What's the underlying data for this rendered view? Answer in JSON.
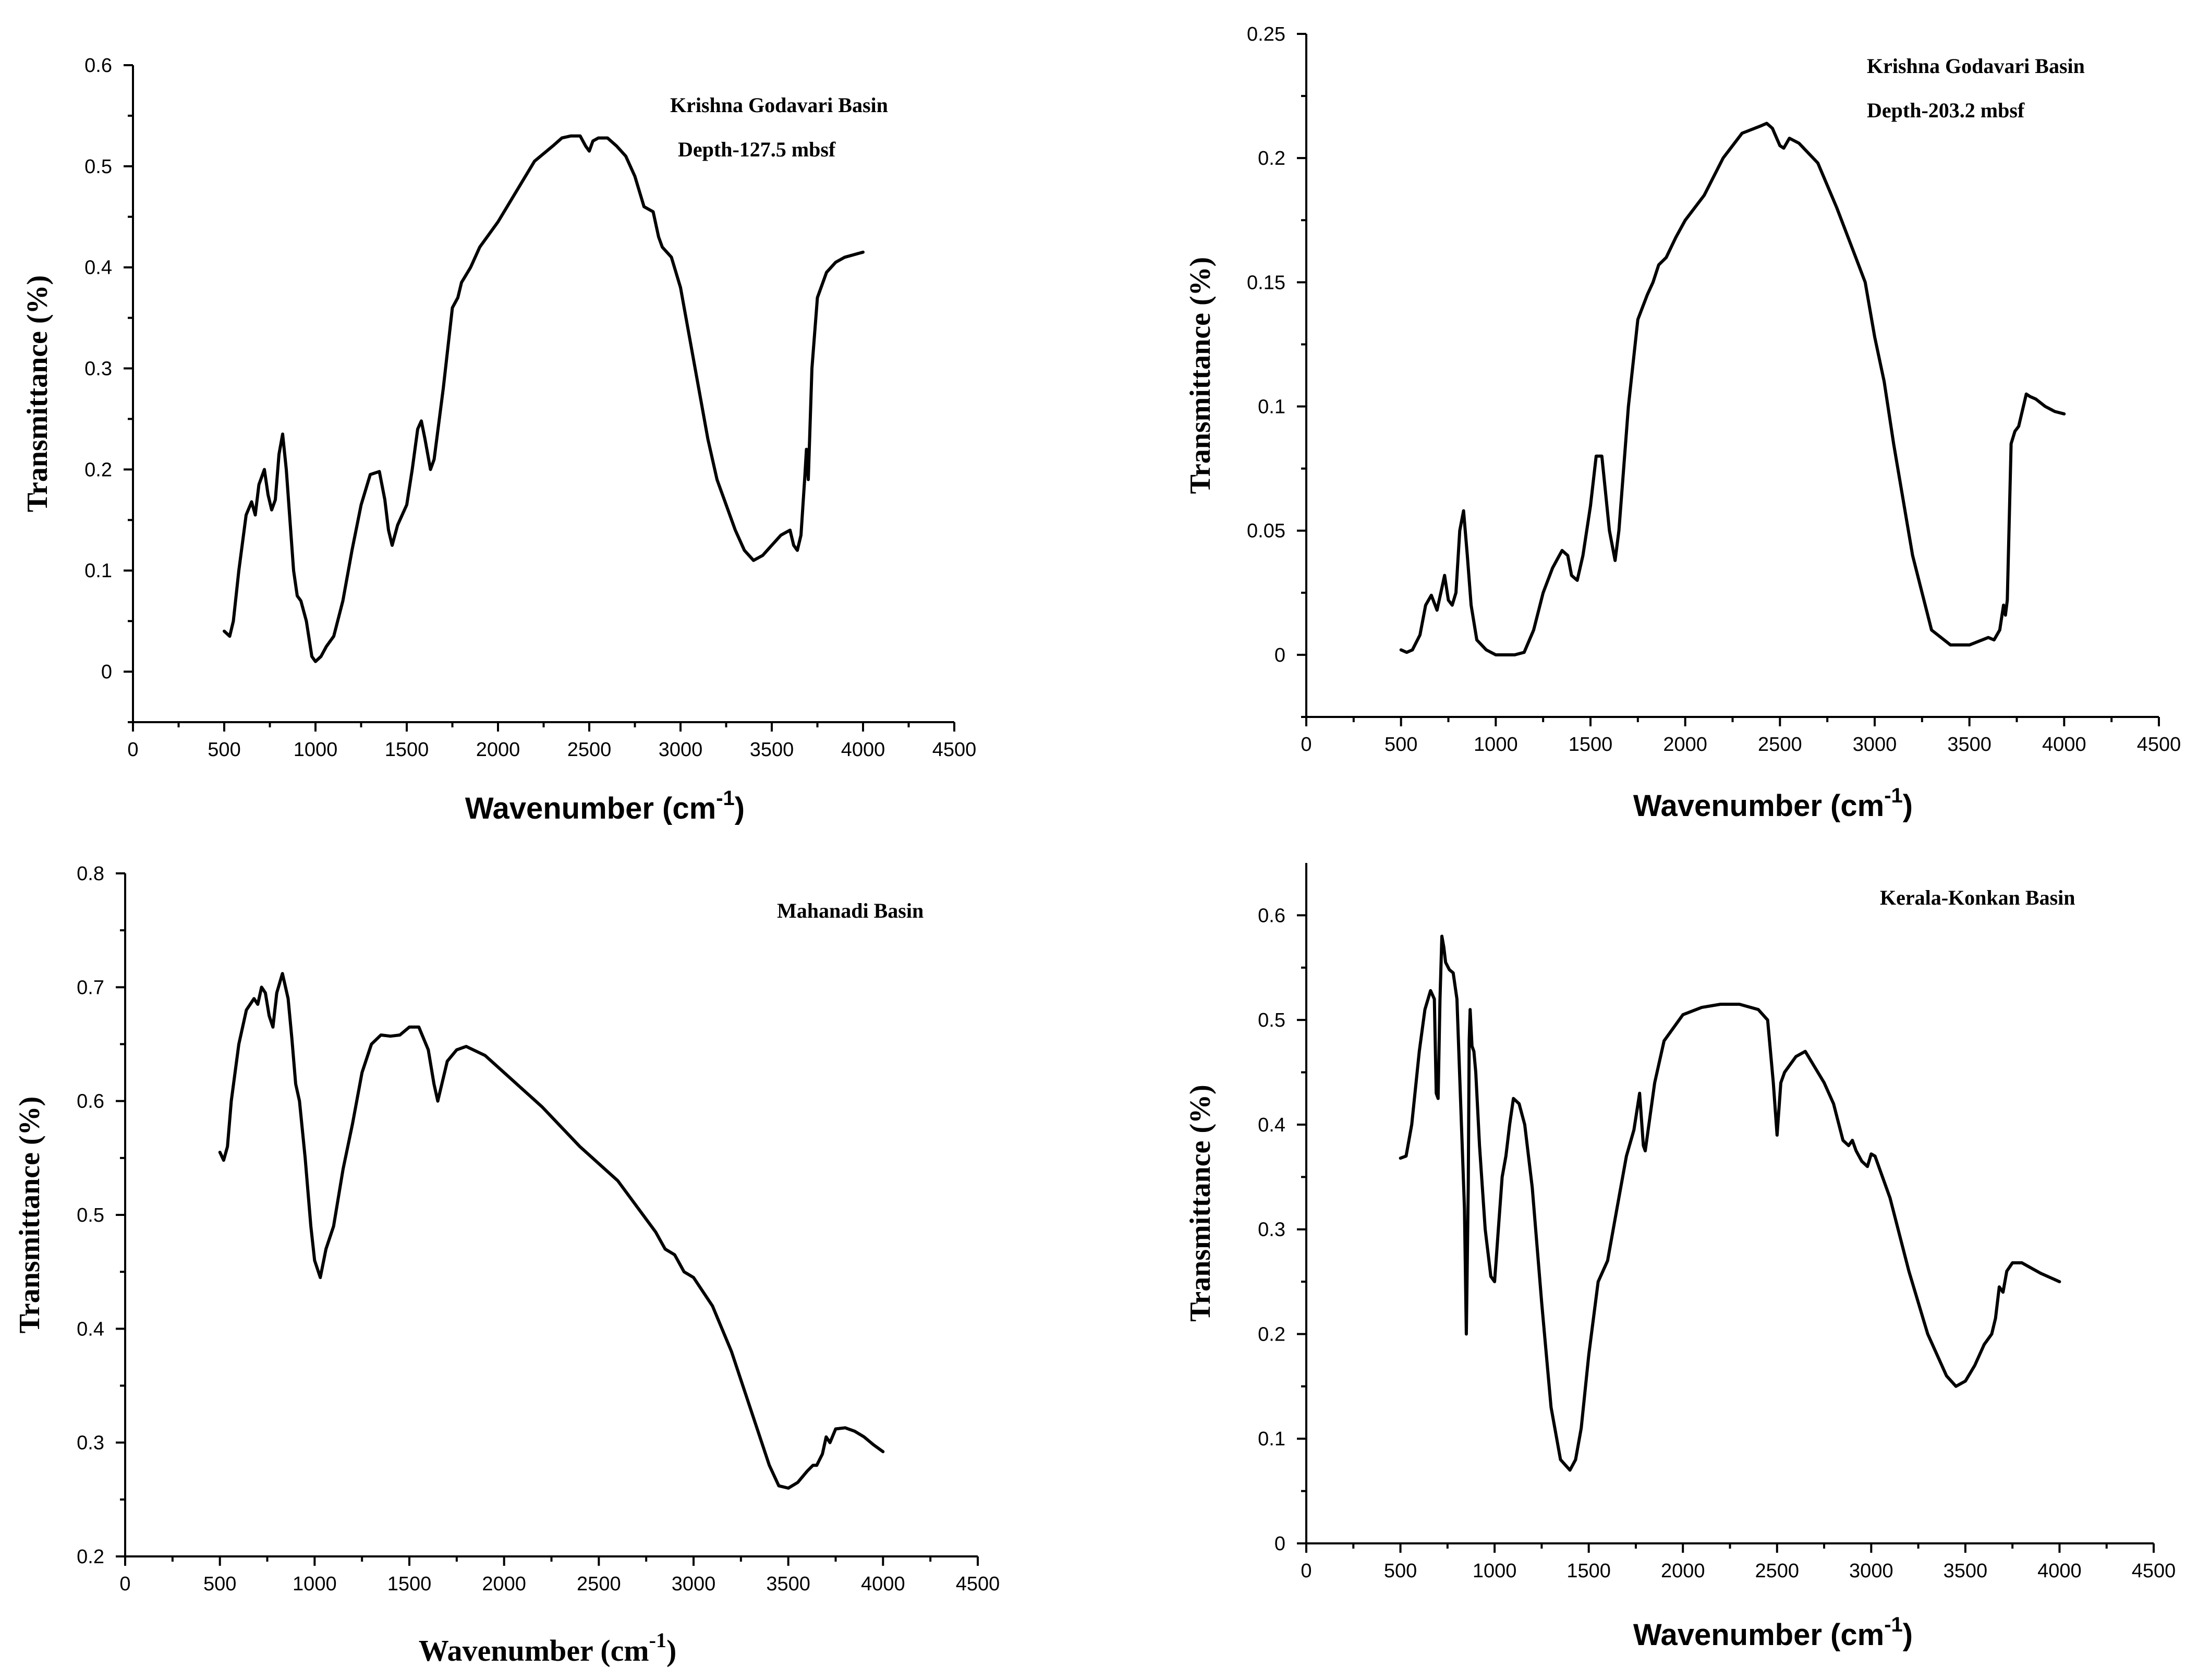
{
  "chart_data": [
    {
      "type": "line",
      "ylabel": "Transmittance (%)",
      "xlabel": "Wavenumber (cm",
      "xlabel_sup": "-1",
      "xlabel_close": ")",
      "annotations": [
        "Krishna Godavari Basin",
        "Depth-127.5 mbsf"
      ],
      "xlim": [
        0,
        4500
      ],
      "ylim": [
        -0.05,
        0.6
      ],
      "xticks": [
        0,
        500,
        1000,
        1500,
        2000,
        2500,
        3000,
        3500,
        4000,
        4500
      ],
      "xtick_labels": [
        "0",
        "500",
        "1000",
        "1500",
        "2000",
        "2500",
        "3000",
        "3500",
        "4000",
        "4500"
      ],
      "yticks": [
        0,
        0.1,
        0.2,
        0.3,
        0.4,
        0.5,
        0.6
      ],
      "ytick_labels": [
        "0",
        "0.1",
        "0.2",
        "0.3",
        "0.4",
        "0.5",
        "0.6"
      ],
      "series": [
        {
          "name": "Depth-127.5 mbsf",
          "x": [
            500,
            530,
            550,
            580,
            620,
            650,
            670,
            690,
            720,
            740,
            760,
            780,
            800,
            820,
            840,
            860,
            880,
            900,
            920,
            950,
            980,
            1000,
            1030,
            1060,
            1100,
            1150,
            1200,
            1250,
            1300,
            1350,
            1380,
            1400,
            1420,
            1450,
            1500,
            1530,
            1560,
            1580,
            1600,
            1630,
            1650,
            1700,
            1750,
            1780,
            1800,
            1850,
            1900,
            2000,
            2100,
            2200,
            2300,
            2350,
            2400,
            2450,
            2480,
            2500,
            2520,
            2550,
            2600,
            2650,
            2700,
            2750,
            2800,
            2850,
            2880,
            2900,
            2950,
            3000,
            3050,
            3100,
            3150,
            3200,
            3250,
            3300,
            3350,
            3400,
            3450,
            3500,
            3550,
            3600,
            3620,
            3640,
            3660,
            3680,
            3690,
            3700,
            3720,
            3750,
            3800,
            3850,
            3900,
            4000
          ],
          "y": [
            0.04,
            0.035,
            0.05,
            0.1,
            0.155,
            0.168,
            0.155,
            0.185,
            0.2,
            0.175,
            0.16,
            0.17,
            0.215,
            0.235,
            0.2,
            0.15,
            0.1,
            0.075,
            0.07,
            0.05,
            0.015,
            0.01,
            0.015,
            0.025,
            0.035,
            0.07,
            0.12,
            0.165,
            0.195,
            0.198,
            0.17,
            0.14,
            0.125,
            0.145,
            0.165,
            0.2,
            0.24,
            0.248,
            0.23,
            0.2,
            0.21,
            0.28,
            0.36,
            0.37,
            0.385,
            0.4,
            0.42,
            0.445,
            0.475,
            0.505,
            0.52,
            0.528,
            0.53,
            0.53,
            0.52,
            0.515,
            0.525,
            0.528,
            0.528,
            0.52,
            0.51,
            0.49,
            0.46,
            0.455,
            0.43,
            0.42,
            0.41,
            0.38,
            0.33,
            0.28,
            0.23,
            0.19,
            0.165,
            0.14,
            0.12,
            0.11,
            0.115,
            0.125,
            0.135,
            0.14,
            0.125,
            0.12,
            0.135,
            0.19,
            0.22,
            0.19,
            0.3,
            0.37,
            0.395,
            0.405,
            0.41,
            0.415
          ]
        }
      ]
    },
    {
      "type": "line",
      "ylabel": "Transmittance (%)",
      "xlabel": "Wavenumber (cm",
      "xlabel_sup": "-1",
      "xlabel_close": ")",
      "annotations": [
        "Krishna Godavari Basin",
        "Depth-203.2 mbsf"
      ],
      "xlim": [
        0,
        4500
      ],
      "ylim": [
        -0.025,
        0.25
      ],
      "xticks": [
        0,
        500,
        1000,
        1500,
        2000,
        2500,
        3000,
        3500,
        4000,
        4500
      ],
      "xtick_labels": [
        "0",
        "500",
        "1000",
        "1500",
        "2000",
        "2500",
        "3000",
        "3500",
        "4000",
        "4500"
      ],
      "yticks": [
        0,
        0.05,
        0.1,
        0.15,
        0.2,
        0.25
      ],
      "ytick_labels": [
        "0",
        "0.05",
        "0.1",
        "0.15",
        "0.2",
        "0.25"
      ],
      "series": [
        {
          "name": "Depth-203.2 mbsf",
          "x": [
            500,
            530,
            560,
            600,
            630,
            660,
            690,
            710,
            730,
            750,
            770,
            790,
            810,
            830,
            850,
            870,
            900,
            950,
            1000,
            1100,
            1150,
            1200,
            1250,
            1300,
            1350,
            1380,
            1400,
            1430,
            1460,
            1500,
            1530,
            1560,
            1600,
            1630,
            1650,
            1700,
            1750,
            1800,
            1830,
            1860,
            1900,
            1950,
            2000,
            2100,
            2200,
            2300,
            2400,
            2430,
            2460,
            2500,
            2520,
            2550,
            2600,
            2700,
            2800,
            2900,
            2950,
            3000,
            3050,
            3100,
            3200,
            3300,
            3400,
            3500,
            3600,
            3630,
            3660,
            3680,
            3690,
            3700,
            3720,
            3740,
            3760,
            3800,
            3820,
            3850,
            3900,
            3950,
            4000
          ],
          "y": [
            0.002,
            0.001,
            0.002,
            0.008,
            0.02,
            0.024,
            0.018,
            0.025,
            0.032,
            0.022,
            0.02,
            0.025,
            0.05,
            0.058,
            0.04,
            0.02,
            0.006,
            0.002,
            0.0,
            0.0,
            0.001,
            0.01,
            0.025,
            0.035,
            0.042,
            0.04,
            0.032,
            0.03,
            0.04,
            0.06,
            0.08,
            0.08,
            0.05,
            0.038,
            0.05,
            0.1,
            0.135,
            0.145,
            0.15,
            0.157,
            0.16,
            0.168,
            0.175,
            0.185,
            0.2,
            0.21,
            0.213,
            0.214,
            0.212,
            0.205,
            0.204,
            0.208,
            0.206,
            0.198,
            0.18,
            0.16,
            0.15,
            0.128,
            0.11,
            0.085,
            0.04,
            0.01,
            0.004,
            0.004,
            0.007,
            0.006,
            0.01,
            0.02,
            0.016,
            0.022,
            0.085,
            0.09,
            0.092,
            0.105,
            0.104,
            0.103,
            0.1,
            0.098,
            0.097
          ]
        }
      ]
    },
    {
      "type": "line",
      "ylabel": "Transmittance (%)",
      "xlabel": "Wavenumber (cm",
      "xlabel_sup": "-1",
      "xlabel_close": ")",
      "annotations": [
        "Mahanadi Basin"
      ],
      "xlim": [
        0,
        4500
      ],
      "ylim": [
        0.2,
        0.8
      ],
      "xticks": [
        0,
        500,
        1000,
        1500,
        2000,
        2500,
        3000,
        3500,
        4000,
        4500
      ],
      "xtick_labels": [
        "0",
        "500",
        "1000",
        "1500",
        "2000",
        "2500",
        "3000",
        "3500",
        "4000",
        "4500"
      ],
      "yticks": [
        0.2,
        0.3,
        0.4,
        0.5,
        0.6,
        0.7,
        0.8
      ],
      "ytick_labels": [
        "0.2",
        "0.3",
        "0.4",
        "0.5",
        "0.6",
        "0.7",
        "0.8"
      ],
      "series": [
        {
          "name": "Mahanadi Basin",
          "x": [
            500,
            520,
            540,
            560,
            600,
            640,
            680,
            700,
            720,
            740,
            760,
            780,
            800,
            830,
            860,
            880,
            900,
            920,
            950,
            980,
            1000,
            1030,
            1060,
            1100,
            1150,
            1200,
            1250,
            1300,
            1350,
            1400,
            1450,
            1500,
            1550,
            1600,
            1630,
            1650,
            1700,
            1750,
            1800,
            1900,
            2000,
            2200,
            2400,
            2600,
            2800,
            2850,
            2900,
            2950,
            3000,
            3100,
            3200,
            3300,
            3400,
            3450,
            3500,
            3550,
            3600,
            3630,
            3650,
            3680,
            3700,
            3720,
            3750,
            3800,
            3850,
            3900,
            3950,
            4000
          ],
          "y": [
            0.555,
            0.548,
            0.56,
            0.6,
            0.65,
            0.68,
            0.69,
            0.685,
            0.7,
            0.695,
            0.675,
            0.665,
            0.695,
            0.712,
            0.69,
            0.655,
            0.615,
            0.6,
            0.55,
            0.49,
            0.46,
            0.445,
            0.47,
            0.49,
            0.54,
            0.58,
            0.625,
            0.65,
            0.658,
            0.657,
            0.658,
            0.665,
            0.665,
            0.645,
            0.615,
            0.6,
            0.635,
            0.645,
            0.648,
            0.64,
            0.625,
            0.595,
            0.56,
            0.53,
            0.485,
            0.47,
            0.465,
            0.45,
            0.445,
            0.42,
            0.38,
            0.33,
            0.28,
            0.262,
            0.26,
            0.265,
            0.275,
            0.28,
            0.28,
            0.29,
            0.305,
            0.3,
            0.312,
            0.313,
            0.31,
            0.305,
            0.298,
            0.292
          ]
        }
      ]
    },
    {
      "type": "line",
      "ylabel": "Transmittance (%)",
      "xlabel": "Wavenumber (cm",
      "xlabel_sup": "-1",
      "xlabel_close": ")",
      "annotations": [
        "Kerala-Konkan Basin"
      ],
      "xlim": [
        0,
        4500
      ],
      "ylim": [
        0,
        0.65
      ],
      "xticks": [
        0,
        500,
        1000,
        1500,
        2000,
        2500,
        3000,
        3500,
        4000,
        4500
      ],
      "xtick_labels": [
        "0",
        "500",
        "1000",
        "1500",
        "2000",
        "2500",
        "3000",
        "3500",
        "4000",
        "4500"
      ],
      "yticks": [
        0,
        0.1,
        0.2,
        0.3,
        0.4,
        0.5,
        0.6
      ],
      "ytick_labels": [
        "0",
        "0.1",
        "0.2",
        "0.3",
        "0.4",
        "0.5",
        "0.6"
      ],
      "series": [
        {
          "name": "Kerala-Konkan Basin",
          "x": [
            500,
            530,
            560,
            600,
            630,
            660,
            680,
            690,
            700,
            710,
            720,
            730,
            740,
            760,
            780,
            800,
            820,
            840,
            850,
            860,
            865,
            870,
            880,
            890,
            900,
            920,
            950,
            980,
            1000,
            1020,
            1040,
            1060,
            1080,
            1100,
            1130,
            1160,
            1200,
            1250,
            1300,
            1350,
            1400,
            1430,
            1460,
            1500,
            1550,
            1600,
            1650,
            1700,
            1740,
            1770,
            1790,
            1800,
            1850,
            1900,
            2000,
            2100,
            2200,
            2300,
            2400,
            2450,
            2480,
            2500,
            2520,
            2540,
            2560,
            2600,
            2650,
            2700,
            2750,
            2800,
            2850,
            2880,
            2900,
            2920,
            2950,
            2980,
            3000,
            3020,
            3050,
            3100,
            3200,
            3300,
            3400,
            3450,
            3500,
            3550,
            3600,
            3640,
            3660,
            3680,
            3700,
            3720,
            3750,
            3800,
            3850,
            3900,
            4000
          ],
          "y": [
            0.368,
            0.37,
            0.4,
            0.47,
            0.51,
            0.528,
            0.52,
            0.43,
            0.425,
            0.52,
            0.58,
            0.57,
            0.555,
            0.548,
            0.545,
            0.52,
            0.42,
            0.32,
            0.2,
            0.34,
            0.48,
            0.51,
            0.475,
            0.47,
            0.45,
            0.38,
            0.3,
            0.255,
            0.25,
            0.3,
            0.35,
            0.37,
            0.4,
            0.425,
            0.42,
            0.4,
            0.34,
            0.23,
            0.13,
            0.08,
            0.07,
            0.08,
            0.11,
            0.18,
            0.25,
            0.27,
            0.32,
            0.37,
            0.395,
            0.43,
            0.38,
            0.375,
            0.44,
            0.48,
            0.505,
            0.512,
            0.515,
            0.515,
            0.51,
            0.5,
            0.44,
            0.39,
            0.44,
            0.45,
            0.455,
            0.465,
            0.47,
            0.455,
            0.44,
            0.42,
            0.385,
            0.38,
            0.385,
            0.375,
            0.365,
            0.36,
            0.372,
            0.37,
            0.355,
            0.33,
            0.26,
            0.2,
            0.16,
            0.15,
            0.155,
            0.17,
            0.19,
            0.2,
            0.215,
            0.245,
            0.24,
            0.26,
            0.268,
            0.268,
            0.263,
            0.258,
            0.25
          ]
        }
      ]
    }
  ]
}
